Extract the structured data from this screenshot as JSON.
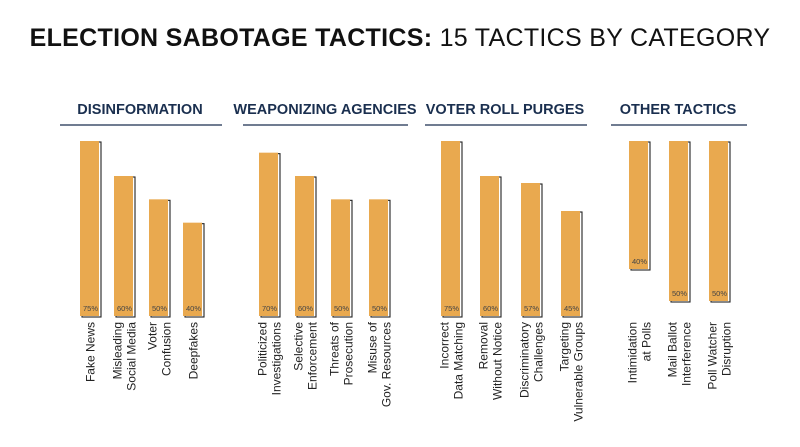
{
  "title": {
    "bold": "ELECTION SABOTAGE TACTICS:",
    "light": "15 TACTICS BY CATEGORY"
  },
  "colors": {
    "bar_fill": "#e9a94f",
    "bar_stroke": "#222222",
    "category_title": "#1a2f4f",
    "divider": "#1a2f4f"
  },
  "chart_data": {
    "type": "bar",
    "ylim": [
      0,
      75
    ],
    "groups": [
      {
        "name": "DISINFORMATION",
        "bars": [
          {
            "label": [
              "Fake News"
            ],
            "value": 75,
            "value_label": "75%"
          },
          {
            "label": [
              "Misleading",
              "Social Media"
            ],
            "value": 60,
            "value_label": "60%"
          },
          {
            "label": [
              "Voter",
              "Confusion"
            ],
            "value": 50,
            "value_label": "50%"
          },
          {
            "label": [
              "Deepfakes"
            ],
            "value": 40,
            "value_label": "40%"
          }
        ]
      },
      {
        "name": "WEAPONIZING AGENCIES",
        "bars": [
          {
            "label": [
              "Politicized",
              "Investigations"
            ],
            "value": 70,
            "value_label": "70%"
          },
          {
            "label": [
              "Selective",
              "Enforcement"
            ],
            "value": 60,
            "value_label": "60%"
          },
          {
            "label": [
              "Threats of",
              "Prosecution"
            ],
            "value": 50,
            "value_label": "50%"
          },
          {
            "label": [
              "Misuse of",
              "Gov. Resources"
            ],
            "value": 50,
            "value_label": "50%"
          }
        ]
      },
      {
        "name": "VOTER ROLL PURGES",
        "bars": [
          {
            "label": [
              "Incorrect",
              "Data Matching"
            ],
            "value": 75,
            "value_label": "75%"
          },
          {
            "label": [
              "Removal",
              "Without Notice"
            ],
            "value": 60,
            "value_label": "60%"
          },
          {
            "label": [
              "Discriminatory",
              "Challenges"
            ],
            "value": 57,
            "value_label": "57%"
          },
          {
            "label": [
              "Targeting",
              "Vulnerable Groups"
            ],
            "value": 45,
            "value_label": "45%"
          }
        ]
      },
      {
        "name": "OTHER TACTICS",
        "floating": true,
        "bars": [
          {
            "label": [
              "Intimidation",
              "at Polls"
            ],
            "value": 40,
            "value_label": "40%"
          },
          {
            "label": [
              "Mail Ballot",
              "Interference"
            ],
            "value": 50,
            "value_label": "50%"
          },
          {
            "label": [
              "Poll Watcher",
              "Disruption"
            ],
            "value": 50,
            "value_label": "50%"
          }
        ]
      }
    ]
  }
}
